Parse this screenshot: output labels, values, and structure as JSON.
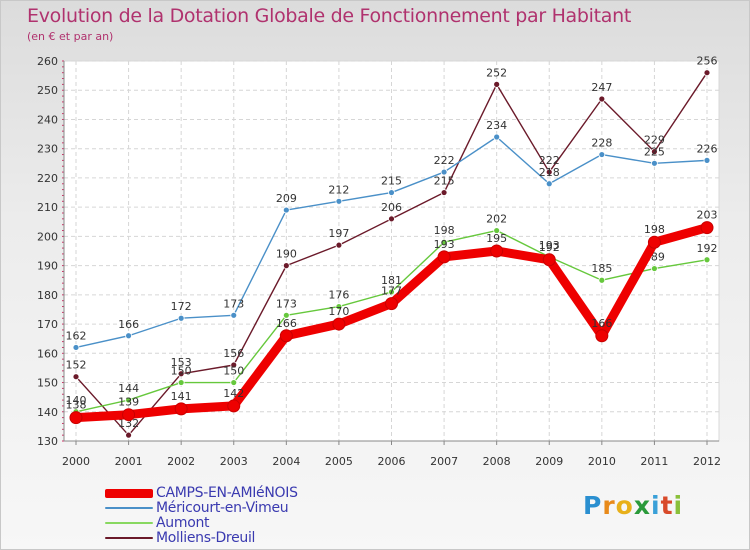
{
  "chart_data": {
    "type": "line",
    "title": "Evolution de la Dotation Globale de Fonctionnement par Habitant",
    "subtitle": "(en € et par an)",
    "xlabel": "",
    "ylabel": "",
    "ylim": [
      130,
      260
    ],
    "yticks": [
      130,
      140,
      150,
      160,
      170,
      180,
      190,
      200,
      210,
      220,
      230,
      240,
      250,
      260
    ],
    "categories": [
      "2000",
      "2001",
      "2002",
      "2003",
      "2004",
      "2005",
      "2006",
      "2007",
      "2008",
      "2009",
      "2010",
      "2011",
      "2012"
    ],
    "series": [
      {
        "name": "Molliens-Dreuil",
        "color": "#6b1a2a",
        "values": [
          152,
          132,
          153,
          156,
          190,
          197,
          206,
          215,
          252,
          222,
          247,
          229,
          256
        ]
      },
      {
        "name": "Méricourt-en-Vimeu",
        "color": "#4a90c8",
        "values": [
          162,
          166,
          172,
          173,
          209,
          212,
          215,
          222,
          234,
          218,
          228,
          225,
          226
        ]
      },
      {
        "name": "Aumont",
        "color": "#66c83c",
        "values": [
          140,
          144,
          150,
          150,
          173,
          176,
          181,
          198,
          202,
          193,
          185,
          189,
          192
        ]
      },
      {
        "name": "CAMPS-EN-AMIéNOIS",
        "color": "#ee0000",
        "values": [
          138,
          139,
          141,
          142,
          166,
          170,
          177,
          193,
          195,
          192,
          166,
          198,
          203
        ]
      }
    ],
    "legend_position": "bottom-left",
    "grid": true
  },
  "legend": [
    {
      "label": "CAMPS-EN-AMIéNOIS",
      "color": "#ee0000"
    },
    {
      "label": "Méricourt-en-Vimeu",
      "color": "#4a90c8"
    },
    {
      "label": "Aumont",
      "color": "#88d860"
    },
    {
      "label": "Molliens-Dreuil",
      "color": "#6b1a2a"
    }
  ],
  "logo": {
    "text": "Proxiti",
    "letters": [
      "P",
      "r",
      "o",
      "x",
      "i",
      "t",
      "i"
    ]
  }
}
